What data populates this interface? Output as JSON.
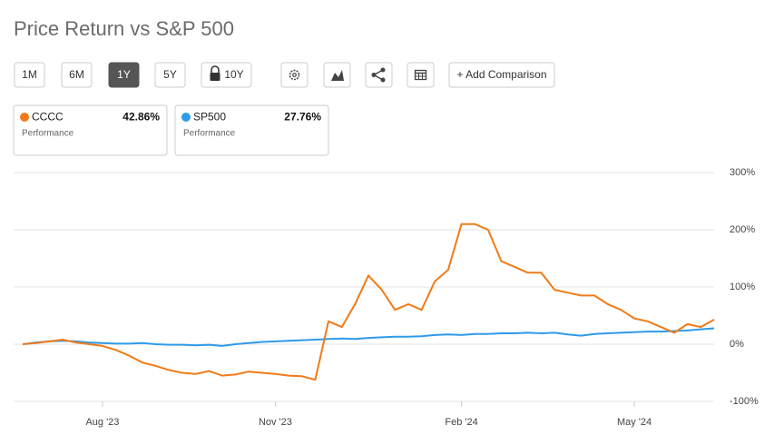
{
  "chart_data": {
    "type": "line",
    "title": "Price Return vs S&P 500",
    "range_buttons": [
      "1M",
      "6M",
      "1Y",
      "5Y",
      "10Y"
    ],
    "active_range": 2,
    "add_button": "+ Add Comparison",
    "legend_caption": "Performance",
    "categories": [
      null,
      null,
      null,
      null,
      null,
      null,
      "Aug '23",
      null,
      null,
      null,
      null,
      null,
      null,
      null,
      null,
      null,
      null,
      null,
      null,
      "Nov '23",
      null,
      null,
      null,
      null,
      null,
      null,
      null,
      null,
      null,
      null,
      null,
      null,
      null,
      "Feb '24",
      null,
      null,
      null,
      null,
      null,
      null,
      null,
      null,
      null,
      null,
      null,
      null,
      "May '24",
      null,
      null,
      null,
      null,
      null,
      null
    ],
    "series": [
      {
        "name": "CCCC",
        "color": "#f07b18",
        "last_label": "42.86%",
        "values": [
          0,
          2,
          5,
          8,
          3,
          0,
          -3,
          -10,
          -20,
          -32,
          -38,
          -45,
          -50,
          -52,
          -47,
          -55,
          -53,
          -48,
          -50,
          -52,
          -55,
          -56,
          -62,
          40,
          30,
          70,
          120,
          95,
          60,
          70,
          60,
          110,
          130,
          210,
          210,
          200,
          145,
          135,
          125,
          125,
          95,
          90,
          85,
          85,
          70,
          60,
          45,
          40,
          30,
          20,
          35,
          30,
          43
        ]
      },
      {
        "name": "SP500",
        "color": "#2f9be8",
        "last_label": "27.76%",
        "values": [
          0,
          3,
          5,
          6,
          5,
          3,
          2,
          1,
          1,
          2,
          0,
          -1,
          -1,
          -2,
          -1,
          -3,
          0,
          2,
          4,
          5,
          6,
          7,
          8,
          9,
          10,
          9,
          11,
          12,
          13,
          13,
          14,
          16,
          17,
          16,
          18,
          18,
          19,
          19,
          20,
          19,
          20,
          17,
          15,
          18,
          19,
          20,
          21,
          22,
          22,
          23,
          24,
          26,
          27.76
        ]
      }
    ],
    "ylim": [
      -100,
      300
    ],
    "yticks": [
      {
        "value": -100,
        "label": "-100%"
      },
      {
        "value": 0,
        "label": "0%"
      },
      {
        "value": 100,
        "label": "100%"
      },
      {
        "value": 200,
        "label": "200%"
      },
      {
        "value": 300,
        "label": "300%"
      }
    ],
    "grid": true
  }
}
